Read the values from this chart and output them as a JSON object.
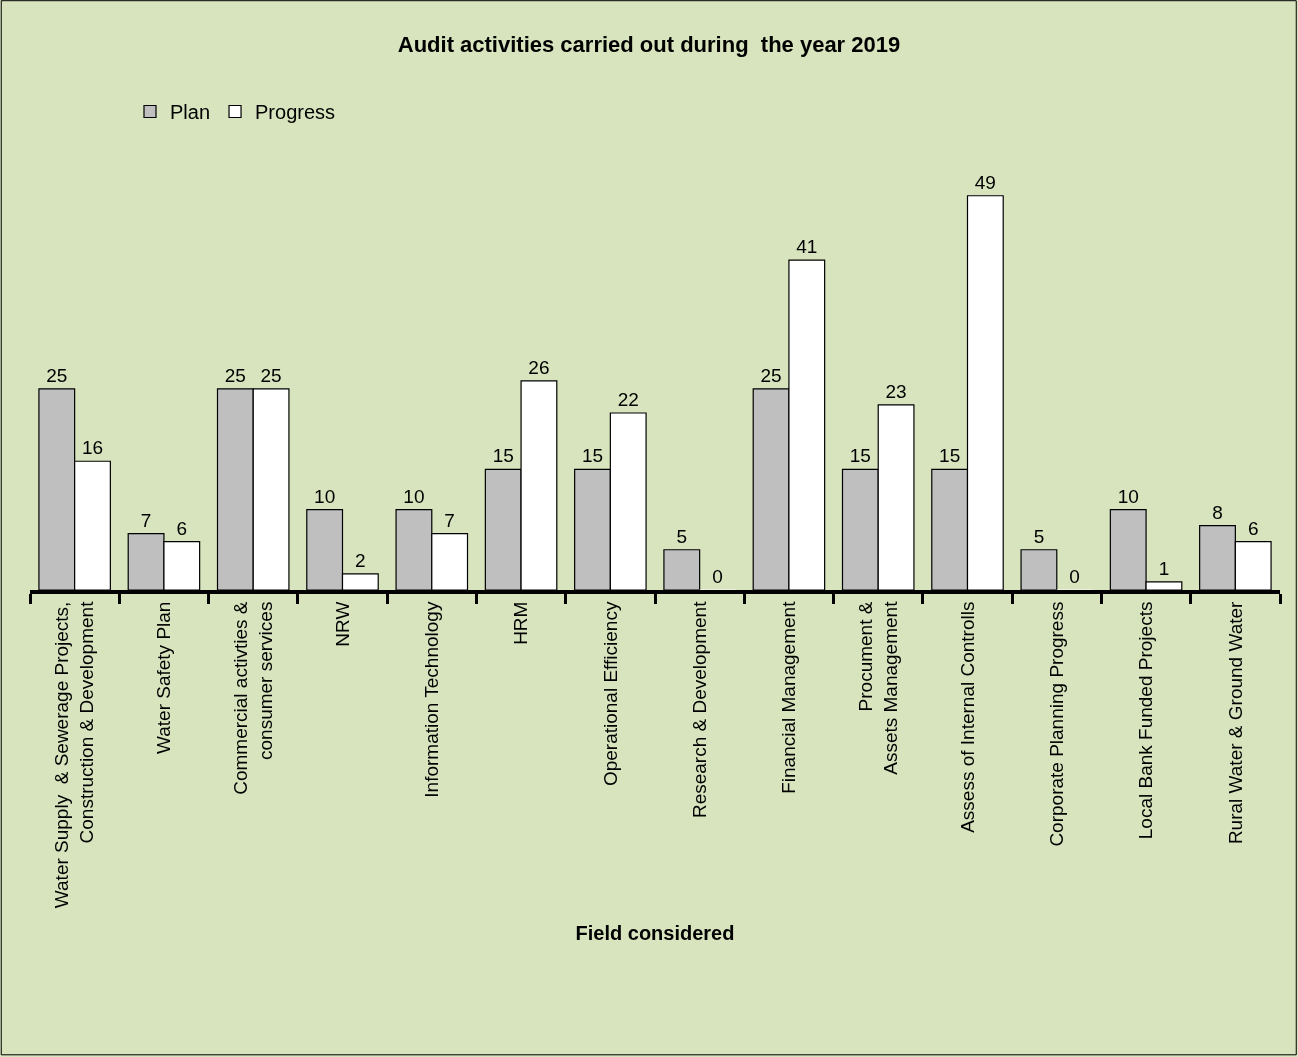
{
  "chart_data": {
    "type": "bar",
    "title": "Audit activities carried out during  the year 2019",
    "xlabel": "Field considered",
    "categories": [
      "Water Supply  & Sewerage Projects,\nConstruction & Development",
      "Water Safety Plan",
      "Commercial activties &\nconsumer services",
      "NRW",
      "Information Technology",
      "HRM",
      "Operational Efficiency",
      "Research & Development",
      "Financial Management",
      "Procument &\nAssets Management",
      "Assess of Internal Controlls",
      "Corporate Planning Progress",
      "Local Bank Funded Projects",
      "Rural Water & Ground Water"
    ],
    "series": [
      {
        "name": "Plan",
        "color": "#bfbfbf",
        "values": [
          25,
          7,
          25,
          10,
          10,
          15,
          15,
          5,
          25,
          15,
          15,
          5,
          10,
          8
        ]
      },
      {
        "name": "Progress",
        "color": "#ffffff",
        "values": [
          16,
          6,
          25,
          2,
          7,
          26,
          22,
          0,
          41,
          23,
          49,
          0,
          1,
          6
        ]
      }
    ],
    "data_labels": true,
    "legend": "top left",
    "grid": false,
    "tick_labels": "x"
  }
}
